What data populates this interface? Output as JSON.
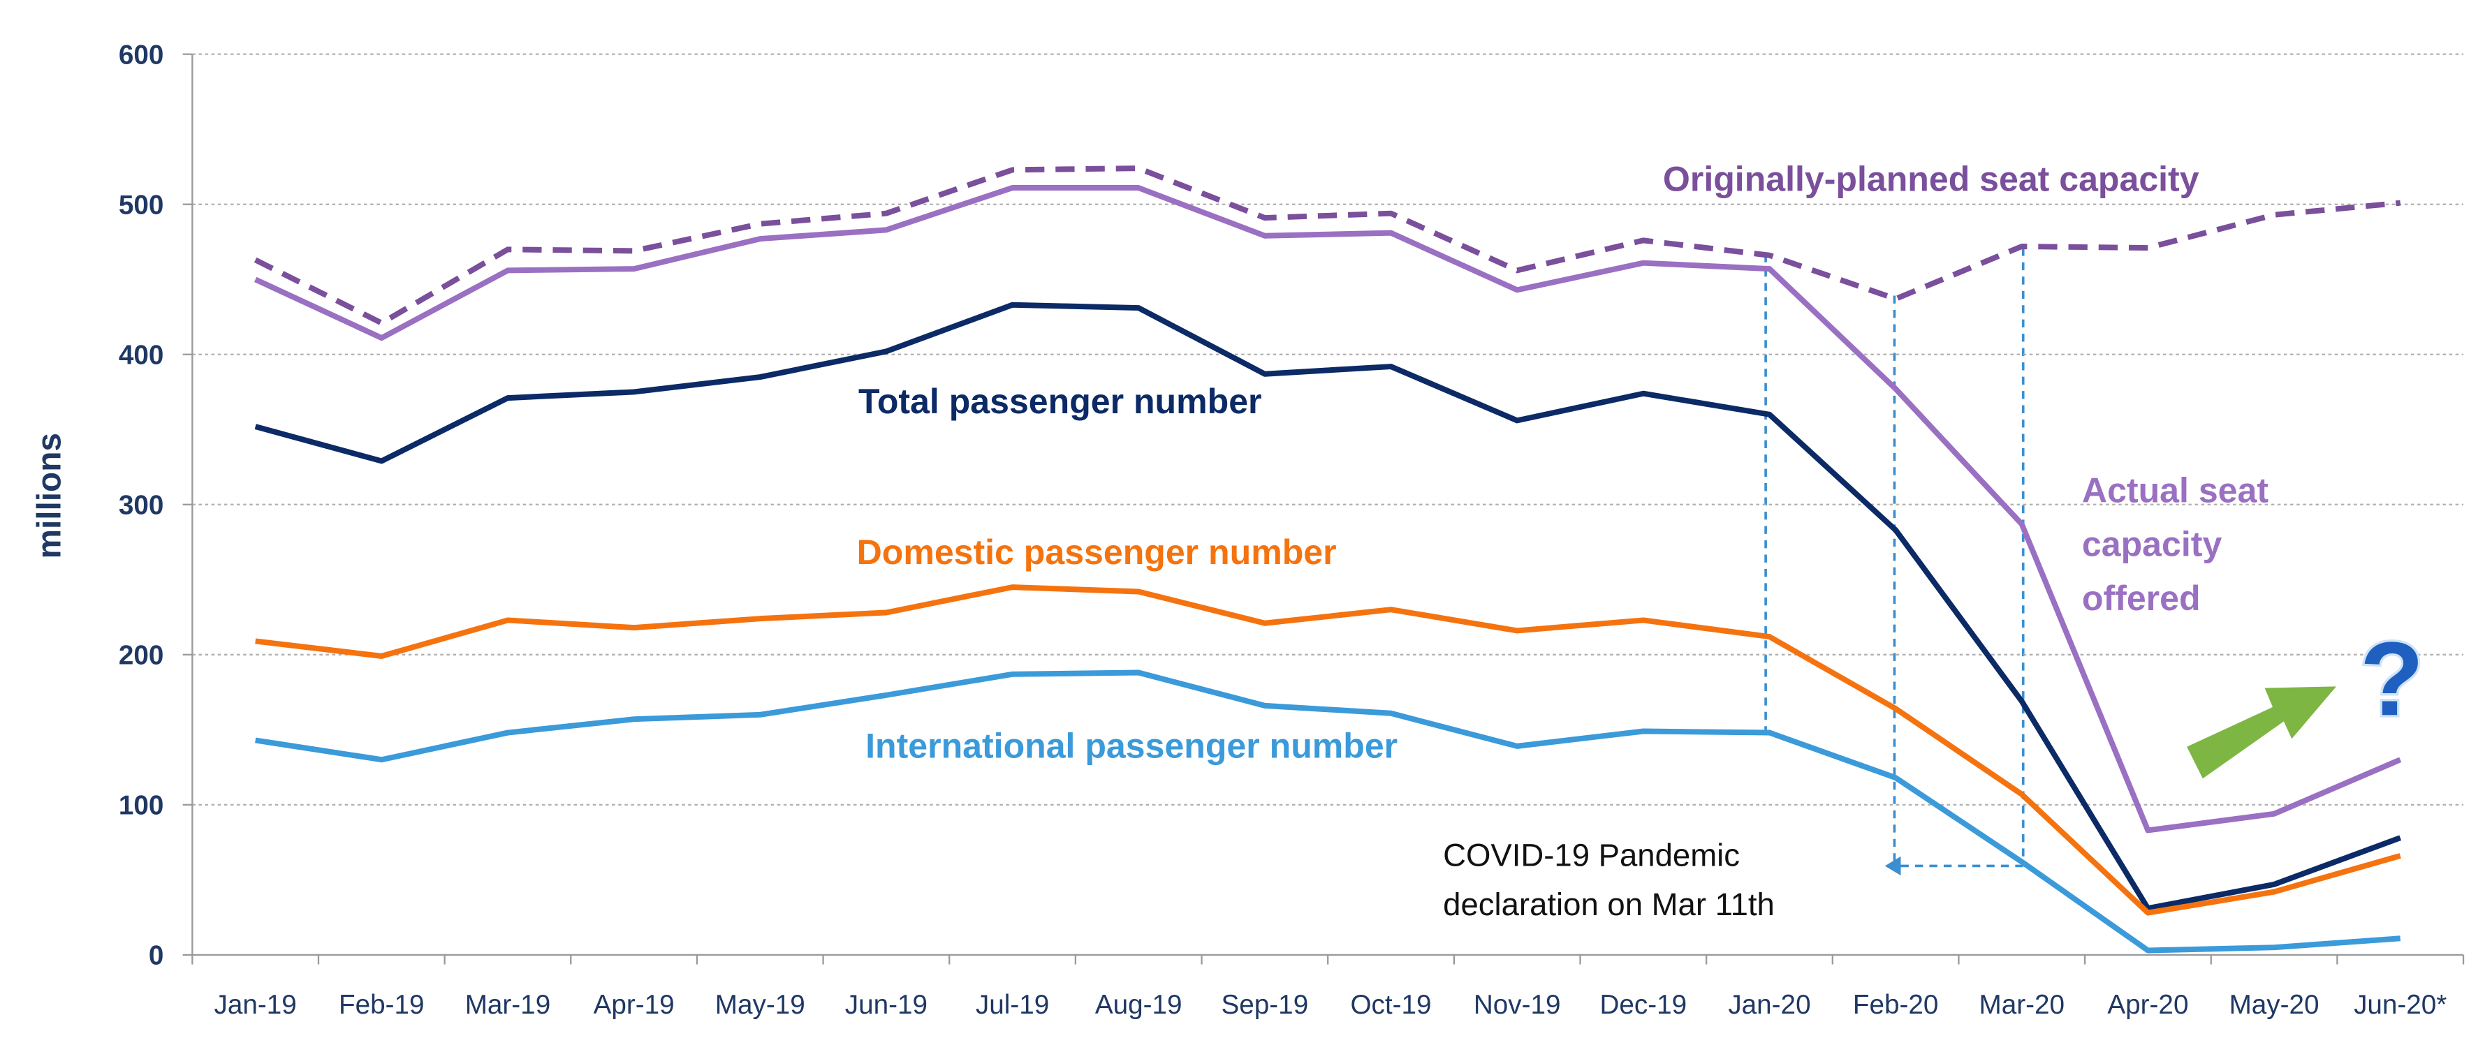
{
  "chart_data": {
    "type": "line",
    "y_label": "millions",
    "categories": [
      "Jan-19",
      "Feb-19",
      "Mar-19",
      "Apr-19",
      "May-19",
      "Jun-19",
      "Jul-19",
      "Aug-19",
      "Sep-19",
      "Oct-19",
      "Nov-19",
      "Dec-19",
      "Jan-20",
      "Feb-20",
      "Mar-20",
      "Apr-20",
      "May-20",
      "Jun-20*"
    ],
    "series": [
      {
        "name": "Originally-planned seat capacity",
        "color": "#7a4f9b",
        "dashed": true,
        "values": [
          463,
          421,
          470,
          469,
          487,
          494,
          523,
          524,
          491,
          494,
          456,
          476,
          466,
          437,
          472,
          471,
          493,
          501
        ]
      },
      {
        "name": "Actual seat capacity offered",
        "color": "#9a70c2",
        "dashed": false,
        "values": [
          450,
          411,
          456,
          457,
          477,
          483,
          511,
          511,
          479,
          481,
          443,
          461,
          457,
          377,
          287,
          83,
          94,
          130
        ]
      },
      {
        "name": "Total passenger number",
        "color": "#0b2a66",
        "dashed": false,
        "values": [
          352,
          329,
          371,
          375,
          385,
          402,
          433,
          431,
          387,
          392,
          356,
          374,
          360,
          283,
          169,
          31,
          47,
          78
        ]
      },
      {
        "name": "Domestic passenger number",
        "color": "#f5730f",
        "dashed": false,
        "values": [
          209,
          199,
          223,
          218,
          224,
          228,
          245,
          242,
          221,
          230,
          216,
          223,
          212,
          164,
          107,
          28,
          42,
          66
        ]
      },
      {
        "name": "International passenger number",
        "color": "#3b9ad9",
        "dashed": false,
        "values": [
          143,
          130,
          148,
          157,
          160,
          173,
          187,
          188,
          166,
          161,
          139,
          149,
          148,
          118,
          62,
          3,
          5,
          11
        ]
      }
    ],
    "ylim": [
      0,
      600
    ],
    "yticks": [
      0,
      100,
      200,
      300,
      400,
      500,
      600
    ],
    "grid": true,
    "annotation": [
      "COVID-19 Pandemic",
      "declaration on Mar 11th"
    ],
    "annotation_symbol": "?"
  }
}
